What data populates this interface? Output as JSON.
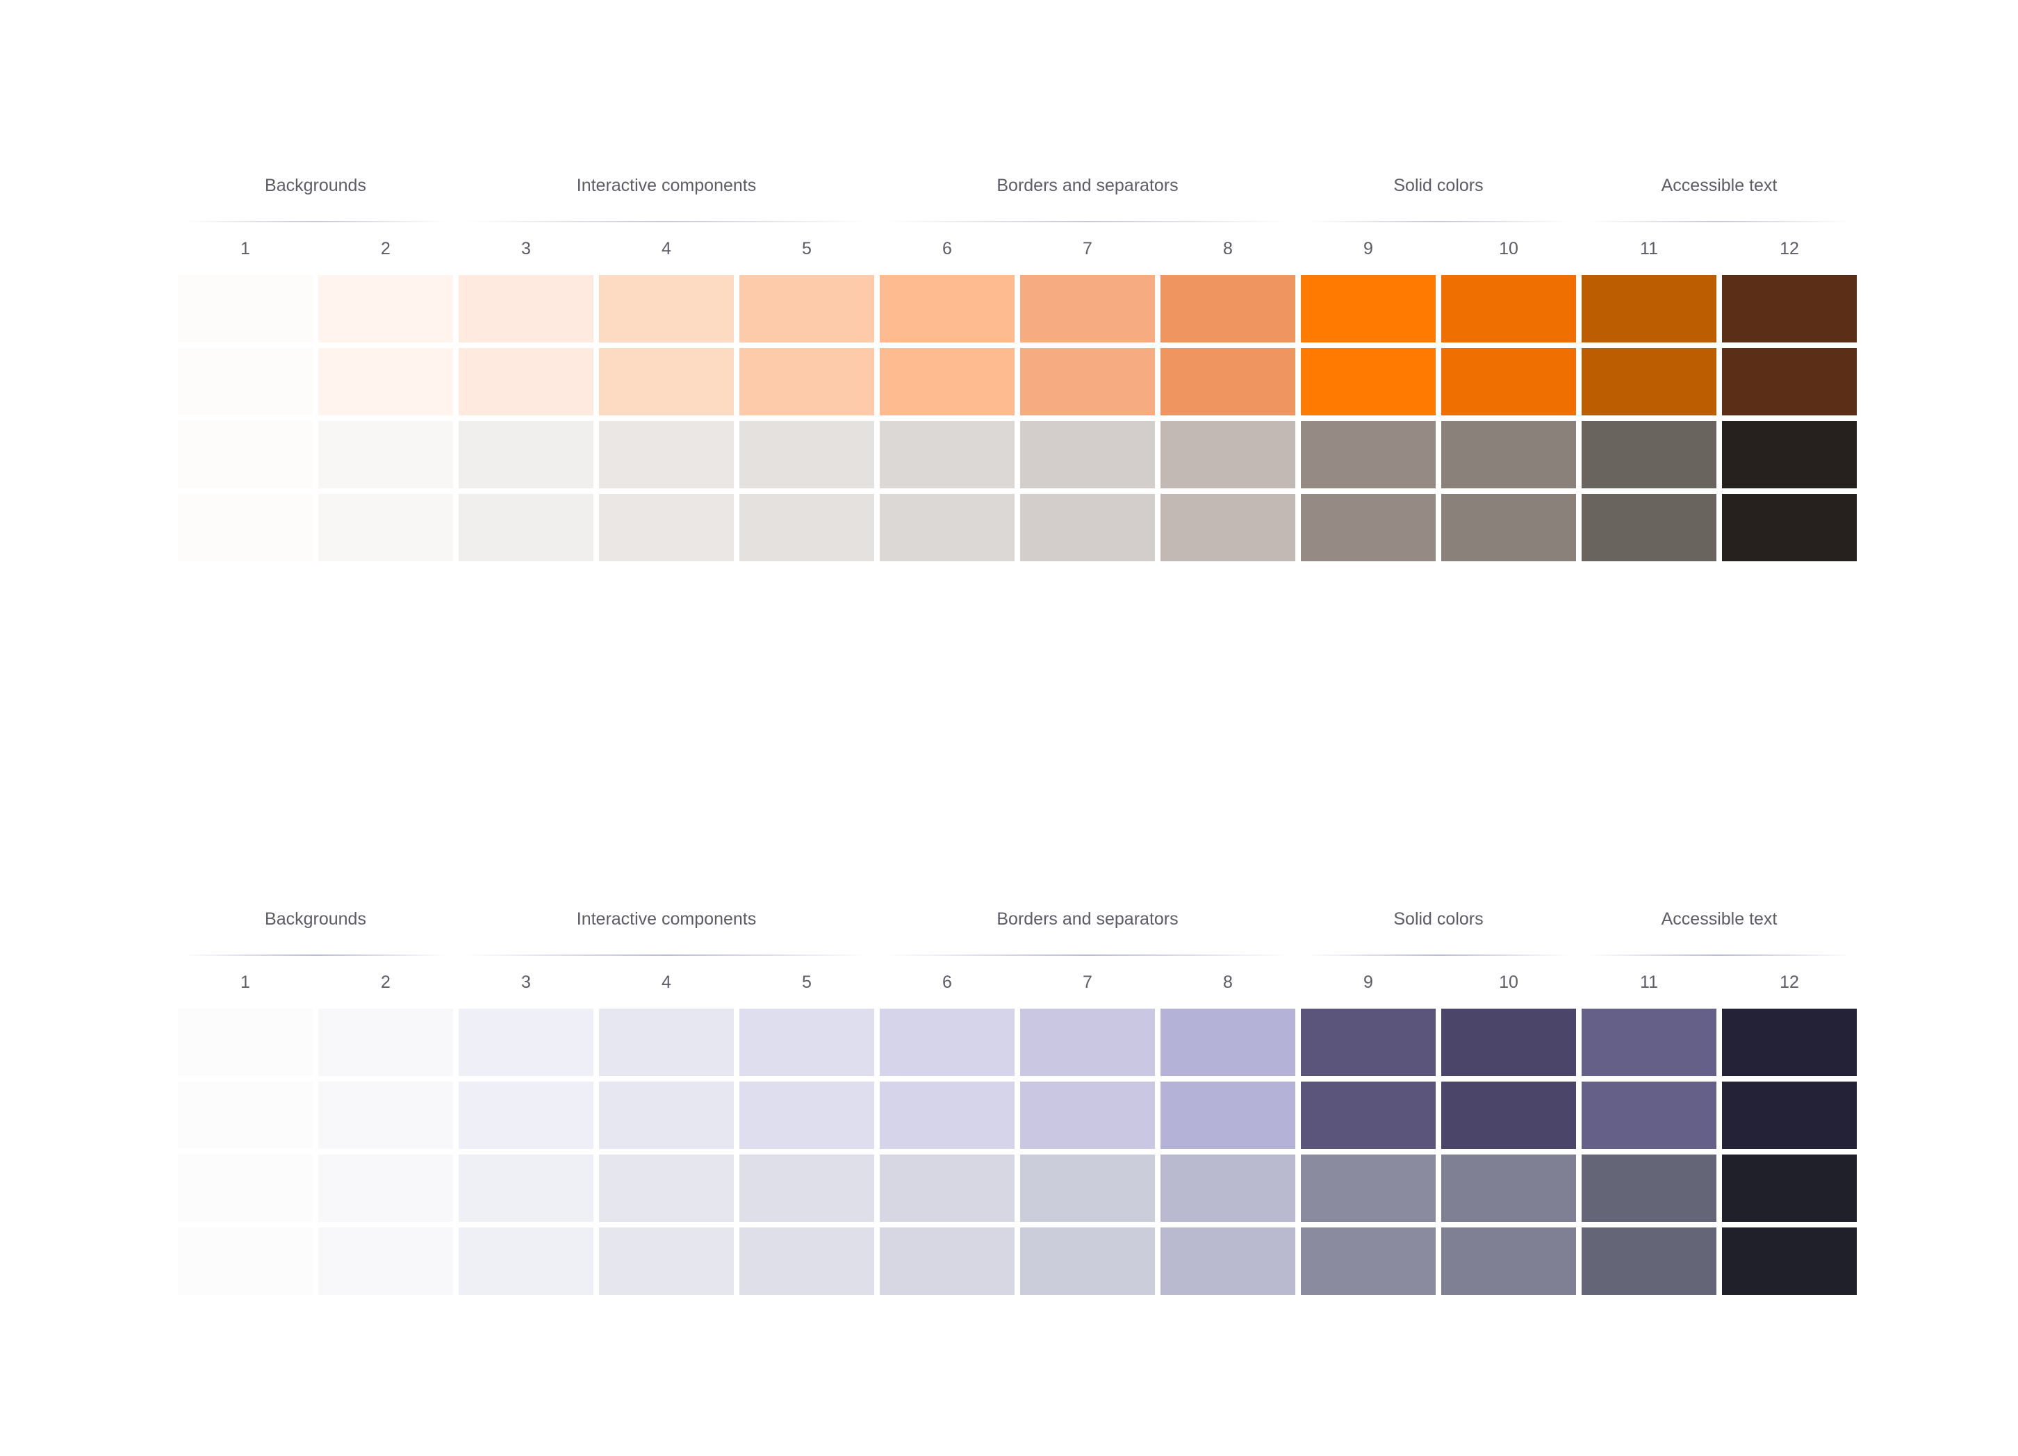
{
  "groups": [
    {
      "label": "Backgrounds",
      "start": 0,
      "span": 2
    },
    {
      "label": "Interactive components",
      "start": 2,
      "span": 3
    },
    {
      "label": "Borders and separators",
      "start": 5,
      "span": 3
    },
    {
      "label": "Solid colors",
      "start": 8,
      "span": 2
    },
    {
      "label": "Accessible text",
      "start": 10,
      "span": 2
    }
  ],
  "steps": [
    "1",
    "2",
    "3",
    "4",
    "5",
    "6",
    "7",
    "8",
    "9",
    "10",
    "11",
    "12"
  ],
  "palettes": [
    {
      "rows": [
        [
          "#fefcfb",
          "#fff4ee",
          "#feeadf",
          "#fddbc2",
          "#fdcba9",
          "#fdbb8f",
          "#f7ab80",
          "#ef955f",
          "#ff7a00",
          "#ef6f00",
          "#bb5d00",
          "#5a2e17"
        ],
        [
          "#fefcfb",
          "#fff4ee",
          "#feeadf",
          "#fddbc2",
          "#fdcba9",
          "#fdbb8f",
          "#f7ab80",
          "#ef955f",
          "#ff7a00",
          "#ef6f00",
          "#bb5d00",
          "#5a2e17"
        ],
        [
          "#fdfcfb",
          "#f8f7f6",
          "#f0efed",
          "#eae7e5",
          "#e4e1df",
          "#dcd8d6",
          "#d3cdcb",
          "#c2b8b4",
          "#958b84",
          "#8b817b",
          "#6a645e",
          "#26211f"
        ],
        [
          "#fdfcfb",
          "#f8f7f6",
          "#f0efed",
          "#eae7e5",
          "#e4e1df",
          "#dcd8d6",
          "#d3cdcb",
          "#c2b8b4",
          "#958b84",
          "#8b817b",
          "#6a645e",
          "#26211f"
        ]
      ]
    },
    {
      "rows": [
        [
          "#fcfcfd",
          "#f8f8fb",
          "#efeff7",
          "#e7e7f2",
          "#dfdeef",
          "#d6d4ea",
          "#cac7e3",
          "#b5b2d7",
          "#5b557b",
          "#4a4569",
          "#656088",
          "#232236"
        ],
        [
          "#fcfcfd",
          "#f8f8fb",
          "#efeff7",
          "#e7e7f2",
          "#dfdeef",
          "#d6d4ea",
          "#cac7e3",
          "#b5b2d7",
          "#5b557b",
          "#4a4569",
          "#656088",
          "#232236"
        ],
        [
          "#fcfcfd",
          "#f8f8fb",
          "#efeff6",
          "#e6e6ef",
          "#dfdfe9",
          "#d6d7e2",
          "#cccddb",
          "#b9bacf",
          "#8a8b9e",
          "#7f8094",
          "#646577",
          "#20202b"
        ],
        [
          "#fcfcfd",
          "#f8f8fb",
          "#efeff6",
          "#e6e6ef",
          "#dfdfe9",
          "#d6d7e2",
          "#cccddb",
          "#b9bacf",
          "#8a8b9e",
          "#7f8094",
          "#646577",
          "#20202b"
        ]
      ]
    }
  ]
}
